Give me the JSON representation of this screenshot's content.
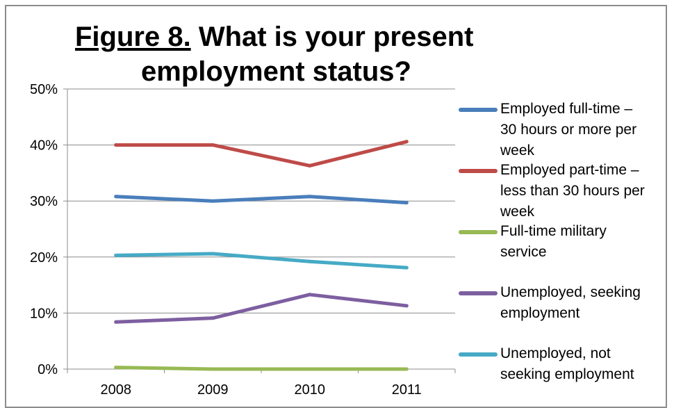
{
  "title_prefix": "Figure 8.",
  "title_rest_line1": " What is your present",
  "title_line2": "employment status?",
  "chart_data": {
    "type": "line",
    "title": "Figure 8. What is your present employment status?",
    "categories": [
      "2008",
      "2009",
      "2010",
      "2011"
    ],
    "yticks": [
      "0%",
      "10%",
      "20%",
      "30%",
      "40%",
      "50%"
    ],
    "ylim": [
      0,
      50
    ],
    "y_unit": "%",
    "grid": true,
    "legend_position": "right",
    "series": [
      {
        "name": "Employed full-time –\n30 hours or more per\nweek",
        "color": "#4a7ebb",
        "values": [
          30.8,
          30.0,
          30.8,
          29.7
        ]
      },
      {
        "name": "Employed part-time –\nless than 30 hours per\nweek",
        "color": "#be4b48",
        "values": [
          40.0,
          40.0,
          36.3,
          40.6
        ]
      },
      {
        "name": "Full-time military\nservice",
        "color": "#98b954",
        "values": [
          0.3,
          0.0,
          0.0,
          0.0
        ]
      },
      {
        "name": "Unemployed, seeking\nemployment",
        "color": "#7d5fa0",
        "values": [
          8.4,
          9.1,
          13.3,
          11.3
        ]
      },
      {
        "name": "Unemployed, not\nseeking employment",
        "color": "#46aac5",
        "values": [
          20.3,
          20.6,
          19.2,
          18.1
        ]
      }
    ]
  }
}
